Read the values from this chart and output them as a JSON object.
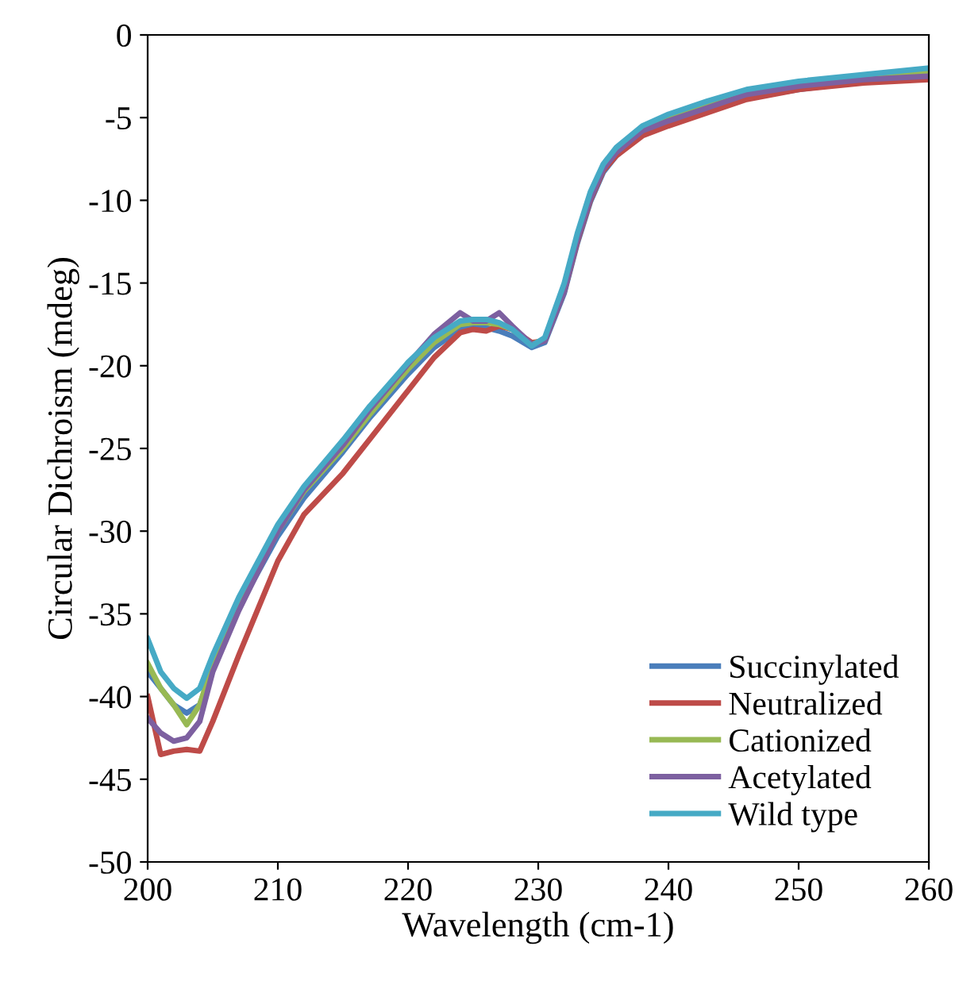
{
  "chart_data": {
    "type": "line",
    "xlabel": "Wavelength (cm-1)",
    "ylabel": "Circular Dichroism (mdeg)",
    "x": [
      200,
      201,
      202,
      203,
      204,
      205,
      207,
      210,
      212,
      215,
      217,
      220,
      222,
      224,
      225,
      226,
      227,
      228,
      229.5,
      230.5,
      232,
      233,
      234,
      235,
      236,
      238,
      240,
      243,
      246,
      250,
      255,
      260
    ],
    "series": [
      {
        "name": "Succinylated",
        "color": "#4a7ebb",
        "values": [
          -38.5,
          -39.5,
          -40.5,
          -41,
          -40.5,
          -38.3,
          -34.6,
          -30.3,
          -28,
          -25.2,
          -23.2,
          -20.5,
          -18.9,
          -17.8,
          -17.7,
          -17.7,
          -17.9,
          -18.2,
          -18.9,
          -18.6,
          -15.6,
          -12.6,
          -10.1,
          -8.3,
          -7.3,
          -6,
          -5.3,
          -4.5,
          -3.8,
          -3.3,
          -2.8,
          -2.5
        ]
      },
      {
        "name": "Neutralized",
        "color": "#be4b48",
        "values": [
          -40,
          -43.5,
          -43.3,
          -43.2,
          -43.3,
          -41.5,
          -37.5,
          -31.8,
          -29,
          -26.5,
          -24.5,
          -21.5,
          -19.5,
          -18,
          -17.8,
          -17.9,
          -17.6,
          -17.8,
          -18.6,
          -18.5,
          -15.5,
          -12.5,
          -10,
          -8.2,
          -7.3,
          -6.1,
          -5.5,
          -4.7,
          -3.9,
          -3.3,
          -2.9,
          -2.7
        ]
      },
      {
        "name": "Cationized",
        "color": "#98b954",
        "values": [
          -38,
          -39.5,
          -40.5,
          -41.7,
          -40.5,
          -38,
          -34.5,
          -30,
          -27.6,
          -25,
          -23,
          -20.2,
          -18.6,
          -17.5,
          -17.4,
          -17.4,
          -17.5,
          -17.8,
          -18.7,
          -18.4,
          -15.3,
          -12.2,
          -9.7,
          -7.9,
          -6.9,
          -5.6,
          -4.9,
          -4.1,
          -3.4,
          -2.9,
          -2.5,
          -2.2
        ]
      },
      {
        "name": "Acetylated",
        "color": "#7d60a0",
        "values": [
          -41.3,
          -42.2,
          -42.7,
          -42.5,
          -41.5,
          -38.5,
          -34.8,
          -30,
          -27.5,
          -24.8,
          -22.7,
          -19.9,
          -18.1,
          -16.8,
          -17.3,
          -17.3,
          -16.8,
          -17.6,
          -18.7,
          -18.5,
          -15.5,
          -12.4,
          -9.9,
          -8.1,
          -7.1,
          -5.8,
          -5.2,
          -4.4,
          -3.6,
          -3.1,
          -2.7,
          -2.5
        ]
      },
      {
        "name": "Wild type",
        "color": "#46aac5",
        "values": [
          -36.5,
          -38.5,
          -39.5,
          -40.1,
          -39.5,
          -37.5,
          -34,
          -29.6,
          -27.3,
          -24.5,
          -22.5,
          -19.8,
          -18.3,
          -17.3,
          -17.2,
          -17.2,
          -17.4,
          -17.8,
          -18.8,
          -18.3,
          -15,
          -12,
          -9.5,
          -7.8,
          -6.8,
          -5.5,
          -4.8,
          -4,
          -3.3,
          -2.8,
          -2.4,
          -2.0
        ]
      }
    ],
    "xlim": [
      200,
      260
    ],
    "xticks": [
      200,
      210,
      220,
      230,
      240,
      250,
      260
    ],
    "ylim": [
      -50,
      0
    ],
    "yticks": [
      -50,
      -45,
      -40,
      -35,
      -30,
      -25,
      -20,
      -15,
      -10,
      -5,
      0
    ],
    "grid": false,
    "legend": "bottom right",
    "marker": "none",
    "line_style": "solid"
  }
}
